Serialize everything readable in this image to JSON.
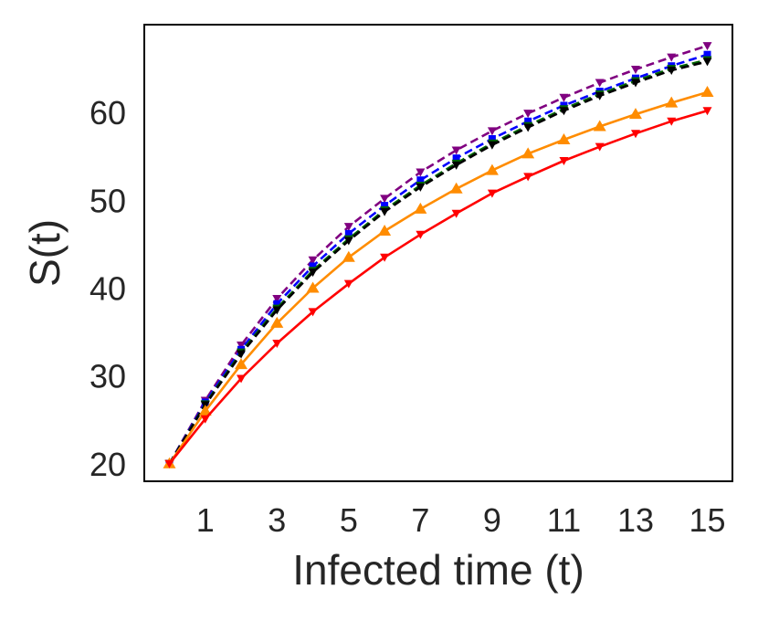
{
  "chart_data": {
    "type": "line",
    "title": "",
    "xlabel": "Infected time (t)",
    "ylabel": "S(t)",
    "xlim": [
      -0.7,
      15.7
    ],
    "ylim": [
      18,
      70
    ],
    "x_ticks": [
      1,
      3,
      5,
      7,
      9,
      11,
      13,
      15
    ],
    "y_ticks": [
      20,
      30,
      40,
      50,
      60
    ],
    "grid": false,
    "legend": "none",
    "x": [
      0,
      1,
      2,
      3,
      4,
      5,
      6,
      7,
      8,
      9,
      10,
      11,
      12,
      13,
      14,
      15
    ],
    "series": [
      {
        "color": "#800080",
        "dash": true,
        "marker": "tri-down",
        "values": [
          20,
          27.2,
          33.5,
          38.8,
          43.2,
          47.0,
          50.2,
          53.2,
          55.7,
          57.9,
          59.9,
          61.7,
          63.4,
          64.9,
          66.3,
          67.6
        ]
      },
      {
        "color": "#0000ff",
        "dash": true,
        "marker": "square",
        "values": [
          20,
          27.0,
          33.0,
          38.2,
          42.5,
          46.2,
          49.4,
          52.3,
          54.8,
          57.0,
          59.0,
          60.8,
          62.4,
          63.9,
          65.3,
          66.6
        ]
      },
      {
        "color": "#006400",
        "dash": true,
        "marker": "tri-down",
        "values": [
          20,
          26.8,
          32.7,
          37.7,
          42.0,
          45.6,
          48.9,
          51.7,
          54.2,
          56.5,
          58.5,
          60.4,
          62.1,
          63.6,
          65.0,
          66.0
        ]
      },
      {
        "color": "#000000",
        "dash": true,
        "marker": "tri-down",
        "values": [
          20,
          26.7,
          32.5,
          37.5,
          41.8,
          45.4,
          48.7,
          51.5,
          54.0,
          56.3,
          58.3,
          60.2,
          61.9,
          63.4,
          64.8,
          65.8
        ]
      },
      {
        "color": "#ff8c00",
        "dash": false,
        "marker": "tri-up",
        "values": [
          20,
          26.0,
          31.3,
          36.0,
          40.0,
          43.5,
          46.5,
          49.0,
          51.3,
          53.4,
          55.3,
          56.9,
          58.4,
          59.8,
          61.1,
          62.3
        ]
      },
      {
        "color": "#ff0000",
        "dash": false,
        "marker": "tri-down",
        "values": [
          20,
          25.1,
          29.7,
          33.7,
          37.3,
          40.5,
          43.5,
          46.1,
          48.5,
          50.8,
          52.7,
          54.5,
          56.1,
          57.6,
          59.0,
          60.2
        ]
      }
    ]
  }
}
